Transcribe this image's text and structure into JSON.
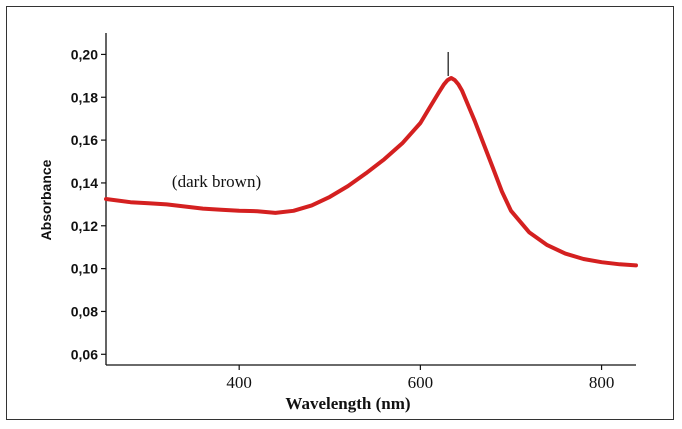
{
  "chart_data": {
    "type": "line",
    "title": "",
    "xlabel": "Wavelength (nm)",
    "ylabel": "Absorbance",
    "xlim": [
      253,
      838
    ],
    "ylim": [
      0.055,
      0.21
    ],
    "x_ticks": [
      400,
      600,
      800
    ],
    "x_tick_labels": [
      "400",
      "600",
      "800"
    ],
    "y_ticks": [
      0.06,
      0.08,
      0.1,
      0.12,
      0.14,
      0.16,
      0.18,
      0.2
    ],
    "y_tick_labels": [
      "0,06",
      "0,08",
      "0,10",
      "0,12",
      "0,14",
      "0,16",
      "0,18",
      "0,20"
    ],
    "grid": false,
    "annotations": [
      {
        "text": "(dark brown)",
        "x": 375,
        "y": 0.138
      },
      {
        "text": "",
        "type": "peak-marker",
        "x": 634,
        "y": 0.189
      }
    ],
    "series": [
      {
        "color": "#d42020",
        "x": [
          253,
          280,
          300,
          320,
          340,
          360,
          380,
          400,
          420,
          440,
          460,
          480,
          500,
          520,
          540,
          560,
          580,
          600,
          610,
          620,
          626,
          630,
          634,
          638,
          642,
          646,
          650,
          655,
          660,
          670,
          680,
          690,
          700,
          720,
          740,
          760,
          780,
          800,
          820,
          838
        ],
        "y": [
          0.1325,
          0.131,
          0.1305,
          0.13,
          0.129,
          0.128,
          0.1275,
          0.127,
          0.1268,
          0.126,
          0.127,
          0.1295,
          0.1335,
          0.1385,
          0.1445,
          0.151,
          0.1585,
          0.168,
          0.175,
          0.182,
          0.186,
          0.188,
          0.189,
          0.188,
          0.186,
          0.183,
          0.179,
          0.174,
          0.169,
          0.158,
          0.147,
          0.136,
          0.127,
          0.117,
          0.111,
          0.107,
          0.1045,
          0.103,
          0.102,
          0.1015
        ]
      }
    ]
  }
}
